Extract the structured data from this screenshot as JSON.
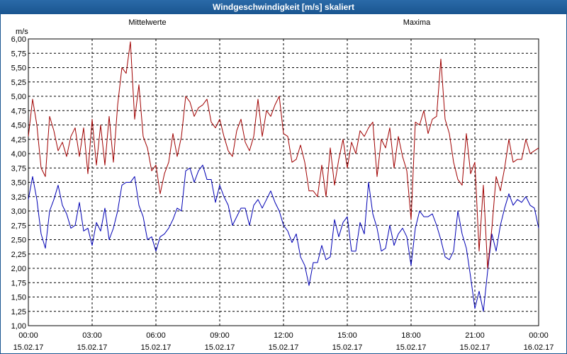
{
  "window": {
    "title": "Windgeschwindigkeit [m/s] skaliert"
  },
  "colors": {
    "title_bar": "#1a5690",
    "mean": "#0000b4",
    "max": "#a00000",
    "grid": "#000000"
  },
  "chart_data": {
    "type": "line",
    "title": "Windgeschwindigkeit [m/s] skaliert",
    "ylabel": "m/s",
    "ylim": [
      1.0,
      6.0
    ],
    "xlim": [
      0,
      24
    ],
    "y_ticks": [
      "1,00",
      "1,25",
      "1,50",
      "1,75",
      "2,00",
      "2,25",
      "2,50",
      "2,75",
      "3,00",
      "3,25",
      "3,50",
      "3,75",
      "4,00",
      "4,25",
      "4,50",
      "4,75",
      "5,00",
      "5,25",
      "5,50",
      "5,75",
      "6,00"
    ],
    "x_ticks": [
      {
        "time": "00:00",
        "date": "15.02.17"
      },
      {
        "time": "03:00",
        "date": "15.02.17"
      },
      {
        "time": "06:00",
        "date": "15.02.17"
      },
      {
        "time": "09:00",
        "date": "15.02.17"
      },
      {
        "time": "12:00",
        "date": "15.02.17"
      },
      {
        "time": "15:00",
        "date": "15.02.17"
      },
      {
        "time": "18:00",
        "date": "15.02.17"
      },
      {
        "time": "21:00",
        "date": "15.02.17"
      },
      {
        "time": "00:00",
        "date": "16.02.17"
      }
    ],
    "grid": true,
    "series": [
      {
        "name": "Mittelwerte",
        "color": "#0000b4",
        "values": [
          [
            0.0,
            3.2
          ],
          [
            0.2,
            3.6
          ],
          [
            0.4,
            3.2
          ],
          [
            0.6,
            2.6
          ],
          [
            0.8,
            2.35
          ],
          [
            1.0,
            3.0
          ],
          [
            1.2,
            3.2
          ],
          [
            1.4,
            3.45
          ],
          [
            1.6,
            3.1
          ],
          [
            1.8,
            2.95
          ],
          [
            2.0,
            2.7
          ],
          [
            2.2,
            2.75
          ],
          [
            2.4,
            3.15
          ],
          [
            2.6,
            2.65
          ],
          [
            2.8,
            2.7
          ],
          [
            3.0,
            2.4
          ],
          [
            3.2,
            2.8
          ],
          [
            3.4,
            2.65
          ],
          [
            3.6,
            3.05
          ],
          [
            3.8,
            2.5
          ],
          [
            4.0,
            2.7
          ],
          [
            4.2,
            3.0
          ],
          [
            4.4,
            3.45
          ],
          [
            4.6,
            3.5
          ],
          [
            4.8,
            3.5
          ],
          [
            5.0,
            3.6
          ],
          [
            5.2,
            3.1
          ],
          [
            5.4,
            2.9
          ],
          [
            5.6,
            2.5
          ],
          [
            5.8,
            2.55
          ],
          [
            6.0,
            2.3
          ],
          [
            6.2,
            2.55
          ],
          [
            6.4,
            2.6
          ],
          [
            6.6,
            2.7
          ],
          [
            6.8,
            2.85
          ],
          [
            7.0,
            3.05
          ],
          [
            7.2,
            3.0
          ],
          [
            7.4,
            3.7
          ],
          [
            7.6,
            3.75
          ],
          [
            7.8,
            3.5
          ],
          [
            8.0,
            3.7
          ],
          [
            8.2,
            3.8
          ],
          [
            8.4,
            3.55
          ],
          [
            8.6,
            3.55
          ],
          [
            8.8,
            3.15
          ],
          [
            9.0,
            3.45
          ],
          [
            9.2,
            3.25
          ],
          [
            9.4,
            3.1
          ],
          [
            9.6,
            2.75
          ],
          [
            9.8,
            2.9
          ],
          [
            10.0,
            3.05
          ],
          [
            10.2,
            3.05
          ],
          [
            10.4,
            2.75
          ],
          [
            10.6,
            3.1
          ],
          [
            10.8,
            3.2
          ],
          [
            11.0,
            3.05
          ],
          [
            11.2,
            3.2
          ],
          [
            11.4,
            3.35
          ],
          [
            11.6,
            3.15
          ],
          [
            11.8,
            3.0
          ],
          [
            12.0,
            2.75
          ],
          [
            12.2,
            2.65
          ],
          [
            12.4,
            2.45
          ],
          [
            12.6,
            2.6
          ],
          [
            12.8,
            2.2
          ],
          [
            13.0,
            2.05
          ],
          [
            13.2,
            1.7
          ],
          [
            13.4,
            2.1
          ],
          [
            13.6,
            2.1
          ],
          [
            13.8,
            2.4
          ],
          [
            14.0,
            2.15
          ],
          [
            14.2,
            2.2
          ],
          [
            14.4,
            2.85
          ],
          [
            14.6,
            2.55
          ],
          [
            14.8,
            2.8
          ],
          [
            15.0,
            2.9
          ],
          [
            15.2,
            2.3
          ],
          [
            15.4,
            2.3
          ],
          [
            15.6,
            2.8
          ],
          [
            15.8,
            2.6
          ],
          [
            16.0,
            3.5
          ],
          [
            16.2,
            2.95
          ],
          [
            16.4,
            2.7
          ],
          [
            16.6,
            2.3
          ],
          [
            16.8,
            2.35
          ],
          [
            17.0,
            2.75
          ],
          [
            17.2,
            2.4
          ],
          [
            17.4,
            2.6
          ],
          [
            17.6,
            2.7
          ],
          [
            17.8,
            2.55
          ],
          [
            18.0,
            2.05
          ],
          [
            18.2,
            2.7
          ],
          [
            18.4,
            3.0
          ],
          [
            18.6,
            2.9
          ],
          [
            18.8,
            2.9
          ],
          [
            19.0,
            2.95
          ],
          [
            19.2,
            2.75
          ],
          [
            19.4,
            2.5
          ],
          [
            19.6,
            2.2
          ],
          [
            19.8,
            2.15
          ],
          [
            20.0,
            2.3
          ],
          [
            20.2,
            3.0
          ],
          [
            20.4,
            2.6
          ],
          [
            20.6,
            2.35
          ],
          [
            20.8,
            1.85
          ],
          [
            21.0,
            1.3
          ],
          [
            21.2,
            1.6
          ],
          [
            21.4,
            1.25
          ],
          [
            21.6,
            1.95
          ],
          [
            21.8,
            2.6
          ],
          [
            22.0,
            2.3
          ],
          [
            22.2,
            2.75
          ],
          [
            22.4,
            3.05
          ],
          [
            22.6,
            3.3
          ],
          [
            22.8,
            3.1
          ],
          [
            23.0,
            3.2
          ],
          [
            23.2,
            3.15
          ],
          [
            23.4,
            3.25
          ],
          [
            23.6,
            3.1
          ],
          [
            23.8,
            3.05
          ],
          [
            24.0,
            2.7
          ]
        ]
      },
      {
        "name": "Maxima",
        "color": "#a00000",
        "values": [
          [
            0.0,
            4.3
          ],
          [
            0.2,
            4.95
          ],
          [
            0.4,
            4.5
          ],
          [
            0.6,
            3.75
          ],
          [
            0.8,
            3.6
          ],
          [
            1.0,
            4.65
          ],
          [
            1.2,
            4.4
          ],
          [
            1.4,
            4.05
          ],
          [
            1.6,
            4.2
          ],
          [
            1.8,
            3.95
          ],
          [
            2.0,
            4.3
          ],
          [
            2.2,
            4.45
          ],
          [
            2.4,
            3.95
          ],
          [
            2.6,
            4.45
          ],
          [
            2.8,
            3.65
          ],
          [
            3.0,
            4.6
          ],
          [
            3.2,
            3.8
          ],
          [
            3.4,
            4.5
          ],
          [
            3.6,
            3.8
          ],
          [
            3.8,
            4.65
          ],
          [
            4.0,
            3.85
          ],
          [
            4.2,
            4.85
          ],
          [
            4.4,
            5.5
          ],
          [
            4.6,
            5.4
          ],
          [
            4.8,
            5.95
          ],
          [
            5.0,
            4.6
          ],
          [
            5.2,
            5.2
          ],
          [
            5.4,
            4.3
          ],
          [
            5.6,
            4.1
          ],
          [
            5.8,
            3.7
          ],
          [
            6.0,
            3.8
          ],
          [
            6.2,
            3.3
          ],
          [
            6.4,
            3.65
          ],
          [
            6.6,
            3.85
          ],
          [
            6.8,
            4.35
          ],
          [
            7.0,
            3.95
          ],
          [
            7.2,
            4.3
          ],
          [
            7.4,
            5.0
          ],
          [
            7.6,
            4.9
          ],
          [
            7.8,
            4.65
          ],
          [
            8.0,
            4.8
          ],
          [
            8.2,
            4.85
          ],
          [
            8.4,
            4.95
          ],
          [
            8.6,
            4.55
          ],
          [
            8.8,
            4.45
          ],
          [
            9.0,
            4.6
          ],
          [
            9.2,
            4.3
          ],
          [
            9.4,
            4.05
          ],
          [
            9.6,
            3.95
          ],
          [
            9.8,
            4.4
          ],
          [
            10.0,
            4.6
          ],
          [
            10.2,
            4.2
          ],
          [
            10.4,
            4.05
          ],
          [
            10.6,
            4.3
          ],
          [
            10.8,
            4.95
          ],
          [
            11.0,
            4.3
          ],
          [
            11.2,
            4.75
          ],
          [
            11.4,
            4.65
          ],
          [
            11.6,
            4.85
          ],
          [
            11.8,
            5.0
          ],
          [
            12.0,
            4.35
          ],
          [
            12.2,
            4.3
          ],
          [
            12.4,
            3.85
          ],
          [
            12.6,
            3.9
          ],
          [
            12.8,
            4.15
          ],
          [
            13.0,
            3.85
          ],
          [
            13.2,
            3.35
          ],
          [
            13.4,
            3.35
          ],
          [
            13.6,
            3.25
          ],
          [
            13.8,
            3.8
          ],
          [
            14.0,
            3.25
          ],
          [
            14.2,
            4.1
          ],
          [
            14.4,
            3.45
          ],
          [
            14.6,
            3.9
          ],
          [
            14.8,
            4.25
          ],
          [
            15.0,
            3.75
          ],
          [
            15.2,
            4.2
          ],
          [
            15.4,
            4.0
          ],
          [
            15.6,
            4.4
          ],
          [
            15.8,
            4.3
          ],
          [
            16.0,
            4.45
          ],
          [
            16.2,
            4.55
          ],
          [
            16.4,
            3.6
          ],
          [
            16.6,
            4.25
          ],
          [
            16.8,
            4.1
          ],
          [
            17.0,
            4.45
          ],
          [
            17.2,
            3.75
          ],
          [
            17.4,
            4.3
          ],
          [
            17.6,
            3.95
          ],
          [
            17.8,
            3.7
          ],
          [
            18.0,
            2.85
          ],
          [
            18.2,
            4.55
          ],
          [
            18.4,
            4.5
          ],
          [
            18.6,
            4.75
          ],
          [
            18.8,
            4.35
          ],
          [
            19.0,
            4.6
          ],
          [
            19.2,
            4.65
          ],
          [
            19.4,
            5.65
          ],
          [
            19.6,
            4.6
          ],
          [
            19.8,
            4.35
          ],
          [
            20.0,
            3.85
          ],
          [
            20.2,
            3.55
          ],
          [
            20.4,
            3.45
          ],
          [
            20.6,
            4.35
          ],
          [
            20.8,
            3.65
          ],
          [
            21.0,
            3.85
          ],
          [
            21.2,
            2.3
          ],
          [
            21.4,
            3.45
          ],
          [
            21.6,
            2.0
          ],
          [
            21.8,
            2.7
          ],
          [
            22.0,
            3.6
          ],
          [
            22.2,
            3.35
          ],
          [
            22.4,
            3.75
          ],
          [
            22.6,
            4.25
          ],
          [
            22.8,
            3.85
          ],
          [
            23.0,
            3.9
          ],
          [
            23.2,
            3.9
          ],
          [
            23.4,
            4.25
          ],
          [
            23.6,
            4.0
          ],
          [
            23.8,
            4.05
          ],
          [
            24.0,
            4.1
          ]
        ]
      }
    ]
  }
}
